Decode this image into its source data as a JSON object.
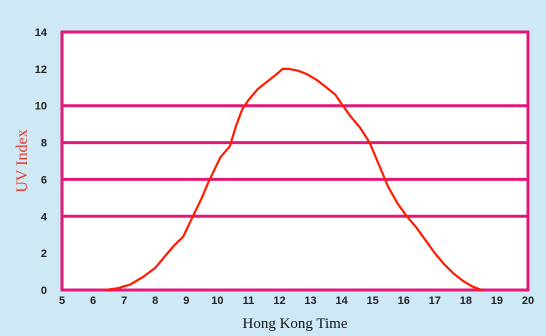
{
  "chart_data": {
    "type": "line",
    "title": "",
    "xlabel": "Hong Kong Time",
    "ylabel": "UV Index",
    "xlim": [
      5,
      20
    ],
    "ylim": [
      0,
      14
    ],
    "x_ticks": [
      "5",
      "6",
      "7",
      "8",
      "9",
      "10",
      "11",
      "12",
      "13",
      "14",
      "15",
      "16",
      "17",
      "18",
      "19",
      "20"
    ],
    "y_ticks": [
      "0",
      "2",
      "4",
      "6",
      "8",
      "10",
      "12",
      "14"
    ],
    "horizontal_lines": [
      4,
      6,
      8,
      10
    ],
    "grid": false,
    "colors": {
      "frame": "#e0197a",
      "line": "#ff1a00",
      "background": "#cfe8f6",
      "plot": "#ffffff",
      "ylabel": "#e03a2a"
    },
    "series": [
      {
        "x": [
          6.4,
          6.8,
          7.2,
          7.6,
          8.0,
          8.3,
          8.6,
          8.9,
          9.1,
          9.3,
          9.5,
          9.7,
          9.9,
          10.1,
          10.4,
          10.6,
          10.8,
          11.0,
          11.3,
          11.6,
          11.9,
          12.1,
          12.3,
          12.6,
          12.9,
          13.2,
          13.5,
          13.8,
          14.0,
          14.3,
          14.6,
          14.9,
          15.1,
          15.3,
          15.5,
          15.8,
          16.1,
          16.4,
          16.7,
          17.0,
          17.3,
          17.6,
          17.9,
          18.2,
          18.5
        ],
        "values": [
          0,
          0.1,
          0.3,
          0.7,
          1.2,
          1.8,
          2.4,
          2.9,
          3.6,
          4.3,
          5.0,
          5.8,
          6.5,
          7.2,
          7.8,
          8.9,
          9.8,
          10.3,
          10.9,
          11.3,
          11.7,
          12.0,
          12.0,
          11.9,
          11.7,
          11.4,
          11.0,
          10.6,
          10.1,
          9.4,
          8.8,
          8.0,
          7.2,
          6.4,
          5.6,
          4.7,
          4.0,
          3.4,
          2.7,
          2.0,
          1.4,
          0.9,
          0.5,
          0.2,
          0
        ]
      }
    ]
  }
}
